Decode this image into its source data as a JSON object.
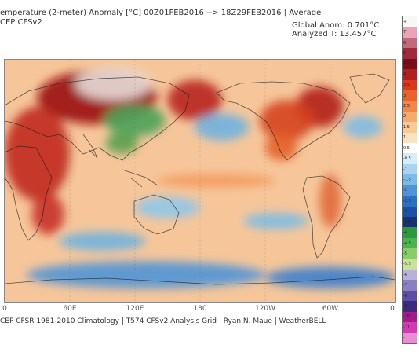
{
  "header": {
    "title": "emperature (2-meter) Anomaly  [°C] 00Z01FEB2016 --> 18Z29FEB2016 | Average",
    "subtitle": "CEP CFSv2",
    "global_anom": "Global Anom: 0.701°C",
    "analyzed_t": "Analyzed T: 13.457°C"
  },
  "map": {
    "projection": "equirectangular",
    "lon_range": [
      0,
      360
    ],
    "lat_range": [
      -90,
      90
    ],
    "x_ticks": [
      {
        "label": "0",
        "lon": 0
      },
      {
        "label": "60E",
        "lon": 60
      },
      {
        "label": "120E",
        "lon": 120
      },
      {
        "label": "180",
        "lon": 180
      },
      {
        "label": "120W",
        "lon": 240
      },
      {
        "label": "60W",
        "lon": 300
      },
      {
        "label": "0",
        "lon": 360
      }
    ],
    "base_color": "#f6c69a",
    "anomaly_regions": [
      {
        "lon": 85,
        "lat": 62,
        "rlon": 55,
        "rlat": 20,
        "color": "#9a0d12"
      },
      {
        "lon": 30,
        "lat": 20,
        "rlon": 30,
        "rlat": 35,
        "color": "#c0281c"
      },
      {
        "lon": 100,
        "lat": 72,
        "rlon": 35,
        "rlat": 12,
        "color": "#e5dcd8"
      },
      {
        "lon": 175,
        "lat": 60,
        "rlon": 25,
        "rlat": 15,
        "color": "#b8231c"
      },
      {
        "lon": 290,
        "lat": 55,
        "rlon": 22,
        "rlat": 15,
        "color": "#b3201a"
      },
      {
        "lon": 260,
        "lat": 45,
        "rlon": 25,
        "rlat": 15,
        "color": "#d5421f"
      },
      {
        "lon": 255,
        "lat": 25,
        "rlon": 15,
        "rlat": 10,
        "color": "#e4602a"
      },
      {
        "lon": 120,
        "lat": 45,
        "rlon": 28,
        "rlat": 12,
        "color": "#4aa35a"
      },
      {
        "lon": 108,
        "lat": 28,
        "rlon": 15,
        "rlat": 8,
        "color": "#5aa04e"
      },
      {
        "lon": 200,
        "lat": 40,
        "rlon": 25,
        "rlat": 10,
        "color": "#6eb3e0"
      },
      {
        "lon": 330,
        "lat": 40,
        "rlon": 18,
        "rlat": 8,
        "color": "#7bbbe6"
      },
      {
        "lon": 150,
        "lat": -20,
        "rlon": 30,
        "rlat": 8,
        "color": "#8ec6ec"
      },
      {
        "lon": 90,
        "lat": -45,
        "rlon": 40,
        "rlat": 7,
        "color": "#6eb3e0"
      },
      {
        "lon": 250,
        "lat": -30,
        "rlon": 30,
        "rlat": 6,
        "color": "#7bbbe6"
      },
      {
        "lon": 300,
        "lat": -15,
        "rlon": 10,
        "rlat": 20,
        "color": "#e16b3a"
      },
      {
        "lon": 130,
        "lat": -70,
        "rlon": 110,
        "rlat": 10,
        "color": "#4f94d6"
      },
      {
        "lon": 300,
        "lat": -72,
        "rlon": 60,
        "rlat": 8,
        "color": "#3a7fcd"
      },
      {
        "lon": 195,
        "lat": 0,
        "rlon": 55,
        "rlat": 5,
        "color": "#f39a5c"
      },
      {
        "lon": 40,
        "lat": -25,
        "rlon": 15,
        "rlat": 15,
        "color": "#c8322a"
      }
    ]
  },
  "colorbar": {
    "colors": [
      "#f7f7f7",
      "#e9a4b8",
      "#c26a7a",
      "#9f2a3a",
      "#7a0e18",
      "#b02020",
      "#d73a1e",
      "#e8622a",
      "#f1884a",
      "#f6aa6e",
      "#f9c996",
      "#fbe2c0",
      "#ffffff",
      "#d6ecf8",
      "#a9d3f0",
      "#7bbbe6",
      "#4f94d6",
      "#2f6fc1",
      "#1d4fa8",
      "#17326e",
      "#2c9a3c",
      "#4ab34f",
      "#89cc6a",
      "#c9e29a",
      "#b9b2d8",
      "#8a7fc0",
      "#5b4ea4",
      "#3d2a7e",
      "#a21c8a",
      "#d23bb2",
      "#e98ed2"
    ],
    "labels": [
      "+",
      "7",
      "6",
      "5",
      "4.5",
      "4",
      "3.5",
      "3",
      "2.5",
      "2",
      "1.5",
      "1",
      "0.5",
      "-0.5",
      "-1",
      "-1.5",
      "-2",
      "-2.5",
      "-3",
      "-3.5",
      "-4",
      "-4.5",
      "-5",
      "-5.5",
      "-6",
      "-7",
      "-8",
      "-9",
      "-10",
      "-11",
      "-"
    ]
  },
  "footer": "CEP CFSR 1981-2010 Climatology | T574 CFSv2 Analysis Grid | Ryan N. Maue | WeatherBELL"
}
